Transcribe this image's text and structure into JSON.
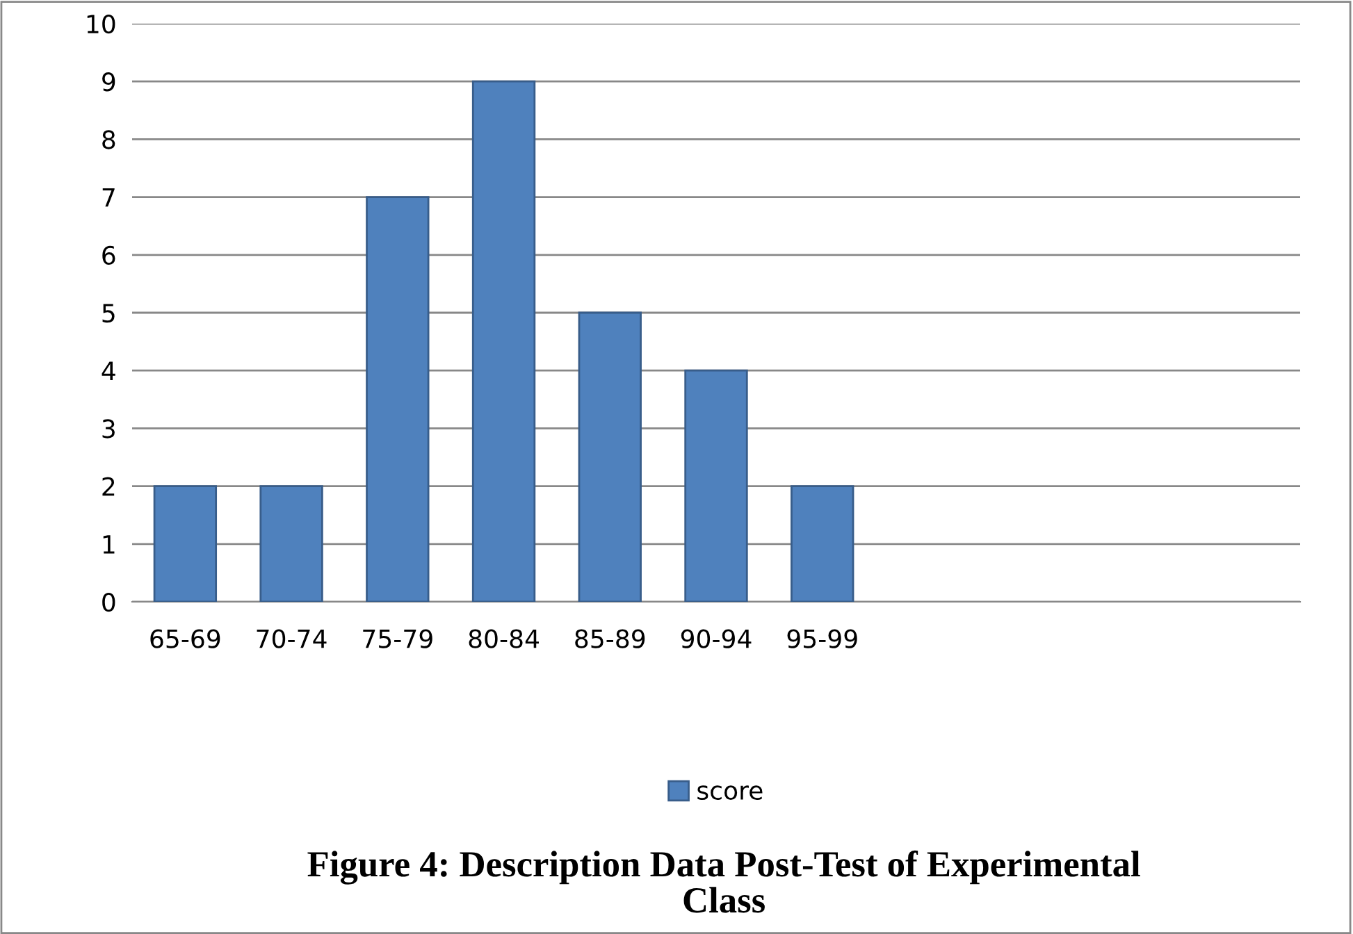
{
  "chart_data": {
    "type": "bar",
    "title": "Figure 4: Description Data Post-Test of Experimental\nClass",
    "categories": [
      "65-69",
      "70-74",
      "75-79",
      "80-84",
      "85-89",
      "90-94",
      "95-99",
      null,
      null,
      null,
      null
    ],
    "series": [
      {
        "name": "score",
        "color": "#4f81bd",
        "values": [
          2,
          2,
          7,
          9,
          5,
          4,
          2,
          null,
          null,
          null,
          null
        ]
      }
    ],
    "ylim": [
      0,
      10
    ],
    "yticks": [
      0,
      1,
      2,
      3,
      4,
      5,
      6,
      7,
      8,
      9,
      10
    ],
    "grid": "y",
    "legend": "bottom"
  }
}
